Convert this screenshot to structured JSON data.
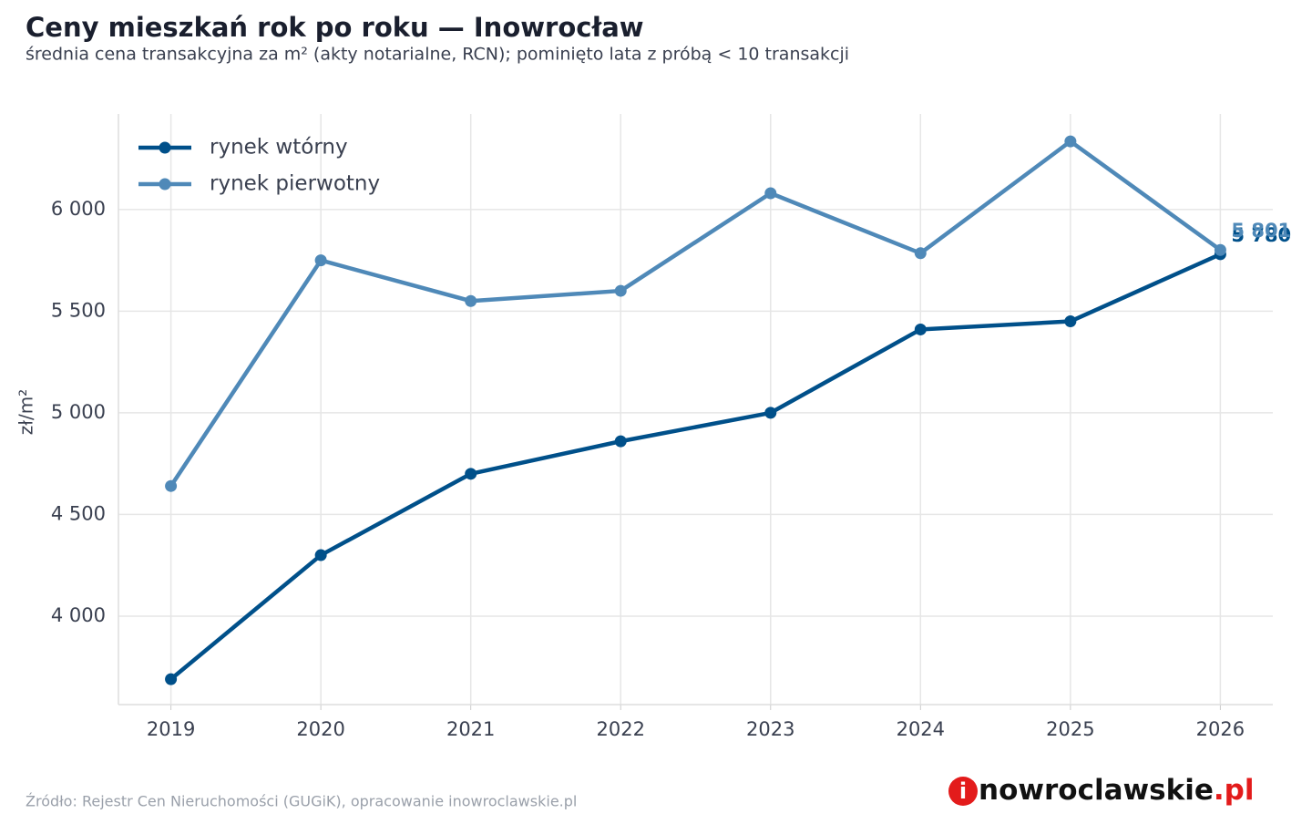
{
  "chart_data": {
    "type": "line",
    "title": "Ceny mieszkań rok po roku — Inowrocław",
    "subtitle": "średnia cena transakcyjna za m² (akty notarialne, RCN); pominięto lata z próbą < 10 transakcji",
    "y_label": "zł/m²",
    "x": [
      2019,
      2020,
      2021,
      2022,
      2023,
      2024,
      2025,
      2026
    ],
    "xlim": [
      2018.65,
      2026.35
    ],
    "xticks": [
      2019,
      2020,
      2021,
      2022,
      2023,
      2024,
      2025,
      2026
    ],
    "ylim": [
      3565,
      6470
    ],
    "yticks": [
      {
        "value": 4000,
        "label": "4 000"
      },
      {
        "value": 4500,
        "label": "4 500"
      },
      {
        "value": 5000,
        "label": "5 000"
      },
      {
        "value": 5500,
        "label": "5 500"
      },
      {
        "value": 6000,
        "label": "6 000"
      }
    ],
    "grid": true,
    "legend": "top-left",
    "series": [
      {
        "name": "rynek wtórny",
        "color": "#00508a",
        "values": [
          3690,
          4300,
          4700,
          4860,
          5000,
          5410,
          5450,
          5780
        ],
        "value_labels": [
          null,
          null,
          null,
          null,
          null,
          null,
          null,
          "5 780"
        ]
      },
      {
        "name": "rynek pierwotny",
        "color": "#4f89b8",
        "values": [
          4640,
          5750,
          5550,
          5600,
          6080,
          5785,
          6335,
          5801
        ],
        "value_labels": [
          null,
          null,
          null,
          null,
          null,
          null,
          null,
          "5 801"
        ]
      }
    ],
    "source": "Źródło: Rejestr Cen Nieruchomości (GUGiK), opracowanie inowroclawskie.pl",
    "brand": {
      "icon": "i",
      "name": "nowroclawskie",
      "tld": ".pl"
    }
  }
}
